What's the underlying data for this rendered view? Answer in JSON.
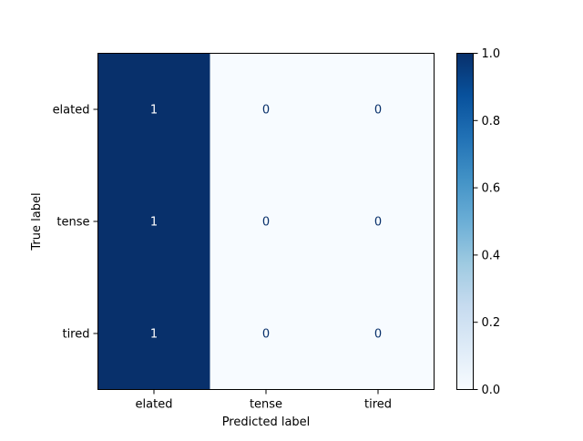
{
  "chart_data": {
    "type": "heatmap",
    "title": "",
    "xlabel": "Predicted label",
    "ylabel": "True label",
    "x_categories": [
      "elated",
      "tense",
      "tired"
    ],
    "y_categories": [
      "elated",
      "tense",
      "tired"
    ],
    "values": [
      [
        1,
        0,
        0
      ],
      [
        1,
        0,
        0
      ],
      [
        1,
        0,
        0
      ]
    ],
    "colormap": "Blues",
    "color_min": "#f7fbff",
    "color_max": "#08306b",
    "text_dark": "#08306b",
    "text_light": "#ffffff",
    "colorbar": {
      "vmin": 0.0,
      "vmax": 1.0,
      "ticks": [
        "0.0",
        "0.2",
        "0.4",
        "0.6",
        "0.8",
        "1.0"
      ]
    },
    "grid": false
  }
}
